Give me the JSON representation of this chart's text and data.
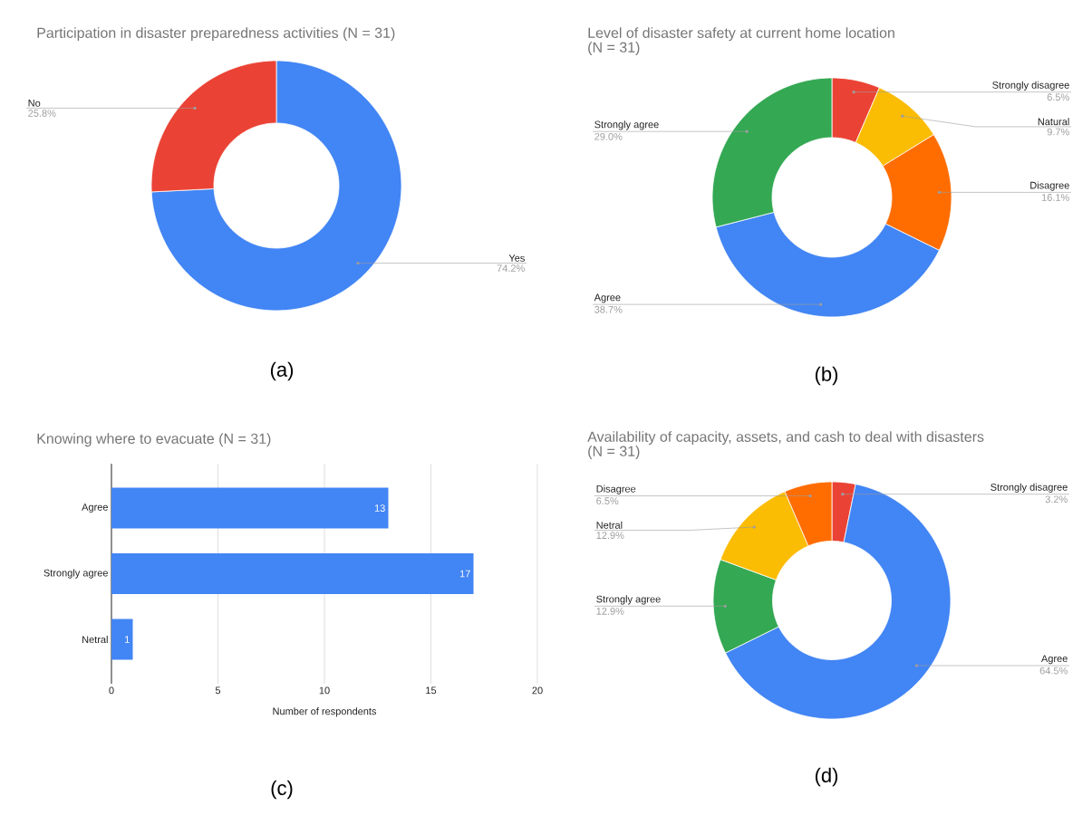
{
  "chart_data": [
    {
      "type": "donut",
      "title": "Participation in disaster preparedness activities (N = 31)",
      "categories": [
        "Yes",
        "No"
      ],
      "values": [
        74.2,
        25.8
      ],
      "colors": [
        "#4285f4",
        "#ea4335"
      ],
      "value_labels": [
        "74.2%",
        "25.8%"
      ],
      "annotations": [
        "(a)"
      ]
    },
    {
      "type": "donut",
      "title": "Level of disaster safety at current home location",
      "subtitle": "(N = 31)",
      "categories": [
        "Strongly disagree",
        "Natural",
        "Disagree",
        "Agree",
        "Strongly agree"
      ],
      "values": [
        6.5,
        9.7,
        16.1,
        38.7,
        29.0
      ],
      "colors": [
        "#ea4335",
        "#fbbc04",
        "#ff6d01",
        "#4285f4",
        "#34a853"
      ],
      "value_labels": [
        "6.5%",
        "9.7%",
        "16.1%",
        "38.7%",
        "29.0%"
      ],
      "annotations": [
        "(b)"
      ]
    },
    {
      "type": "bar",
      "orientation": "horizontal",
      "title": "Knowing where to evacuate (N = 31)",
      "categories": [
        "Agree",
        "Strongly agree",
        "Netral"
      ],
      "values": [
        13,
        17,
        1
      ],
      "color": "#4285f4",
      "xlim": [
        0,
        20
      ],
      "xticks": [
        0,
        5,
        10,
        15,
        20
      ],
      "xlabel": "Number of respondents",
      "grid": "x",
      "data_labels": true,
      "annotations": [
        "(c)"
      ]
    },
    {
      "type": "donut",
      "title": "Availability of capacity, assets, and cash to deal with disasters",
      "subtitle": "(N = 31)",
      "categories": [
        "Strongly disagree",
        "Agree",
        "Strongly agree",
        "Netral",
        "Disagree"
      ],
      "values": [
        3.2,
        64.5,
        12.9,
        12.9,
        6.5
      ],
      "colors": [
        "#ea4335",
        "#4285f4",
        "#34a853",
        "#fbbc04",
        "#ff6d01"
      ],
      "value_labels": [
        "3.2%",
        "64.5%",
        "12.9%",
        "12.9%",
        "6.5%"
      ],
      "annotations": [
        "(d)"
      ]
    }
  ]
}
